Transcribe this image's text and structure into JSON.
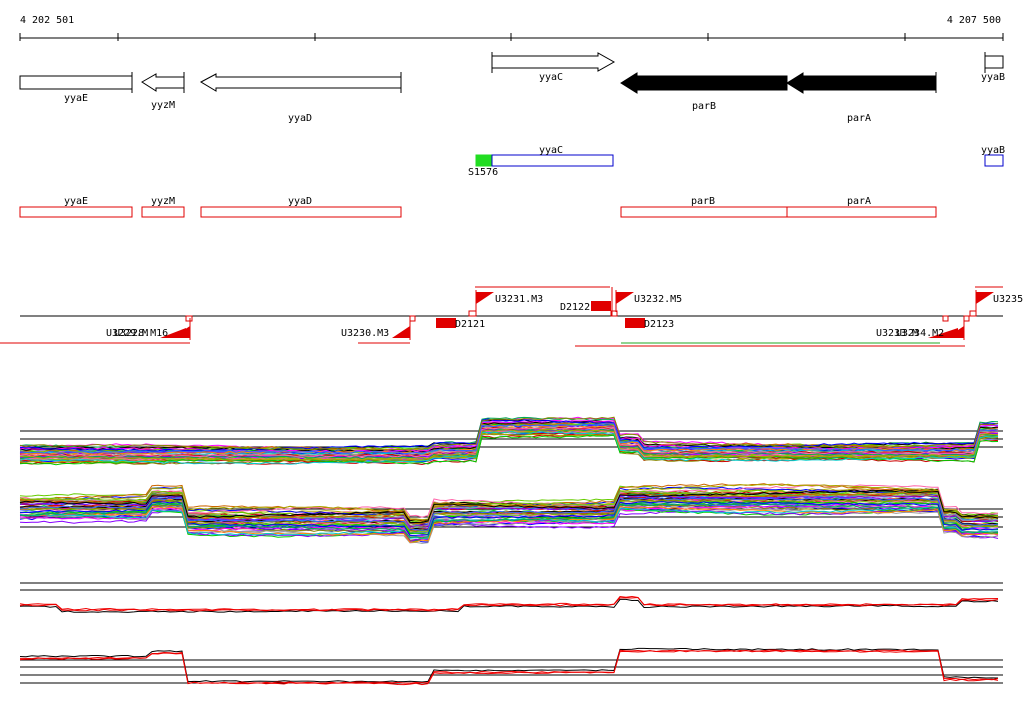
{
  "coordinates": {
    "start": "4 202 501",
    "end": "4 207 500"
  },
  "genes_top": [
    {
      "name": "yyaE",
      "strand": "+",
      "style": "outline"
    },
    {
      "name": "yyzM",
      "strand": "-",
      "style": "outline"
    },
    {
      "name": "yyaD",
      "strand": "-",
      "style": "outline"
    },
    {
      "name": "yyaC",
      "strand": "+",
      "style": "outline"
    },
    {
      "name": "parB",
      "strand": "-",
      "style": "filled"
    },
    {
      "name": "parA",
      "strand": "-",
      "style": "filled"
    },
    {
      "name": "yyaB",
      "strand": "+",
      "style": "outline"
    }
  ],
  "features_blue": [
    {
      "name": "yyaC"
    },
    {
      "name": "yyaB"
    },
    {
      "name": "S1576"
    }
  ],
  "features_red": [
    {
      "name": "yyaE"
    },
    {
      "name": "yyzM"
    },
    {
      "name": "yyaD"
    },
    {
      "name": "parB"
    },
    {
      "name": "parA"
    }
  ],
  "transcription": {
    "upper_labels": [
      "U3231.M3",
      "D2122",
      "U3232.M5",
      "U3235"
    ],
    "lower_labels": [
      "U3228.M16",
      "U3229.M",
      "U3230.M3",
      "D2121",
      "D2123",
      "U3233.M",
      "U3234.M2"
    ]
  },
  "colors": {
    "gene_filled": "#000000",
    "feature_red": "#e00000",
    "feature_blue": "#0000cc",
    "promoter_green": "#22dd22",
    "line_red": "#ee0000",
    "line_green": "#22aa22"
  }
}
